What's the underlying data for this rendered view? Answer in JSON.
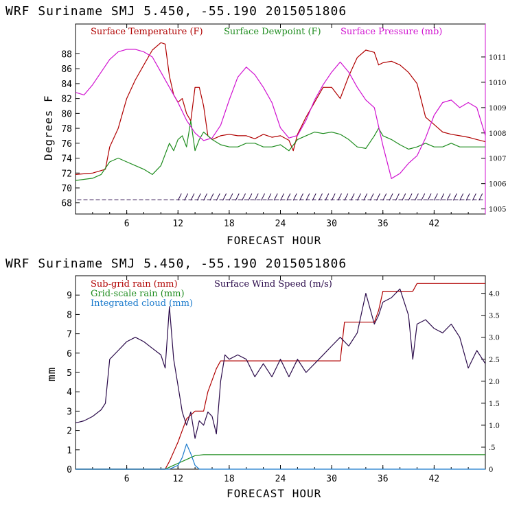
{
  "chart_data": [
    {
      "type": "line",
      "header": "WRF   Suriname SMJ   5.450, -55.190  2015051806",
      "xlabel": "FORECAST HOUR",
      "ylabel": "Degrees F",
      "xlim": [
        0,
        48
      ],
      "ylim": [
        66.5,
        92
      ],
      "y2lim": [
        1004.8,
        1012.3
      ],
      "x_ticks": [
        "6",
        "12",
        "18",
        "24",
        "30",
        "36",
        "42"
      ],
      "y_ticks": [
        "68",
        "70",
        "72",
        "74",
        "76",
        "78",
        "80",
        "82",
        "84",
        "86",
        "88"
      ],
      "y2_ticks": [
        "1005",
        "1006",
        "1007",
        "1008",
        "1009",
        "1010",
        "1011"
      ],
      "legend": [
        "Surface Temperature (F)",
        "Surface Dewpoint (F)",
        "Surface Pressure (mb)"
      ],
      "colors": {
        "temperature": "#b00000",
        "dewpoint": "#1e8c1e",
        "pressure": "#d010d0",
        "barbs": "#2a0a4a"
      },
      "series": [
        {
          "name": "Surface Temperature (F)",
          "axis": "left",
          "x": [
            0,
            2,
            3.5,
            4,
            5,
            6,
            7,
            8,
            9,
            10,
            10.5,
            11,
            11.5,
            12,
            12.5,
            13,
            13.5,
            14,
            14.5,
            15,
            15.5,
            16,
            17,
            18,
            19,
            20,
            21,
            22,
            23,
            24,
            25,
            25.5,
            26,
            27,
            28,
            29,
            30,
            31,
            32,
            33,
            34,
            35,
            35.5,
            36,
            37,
            38,
            39,
            40,
            41,
            42,
            43,
            44,
            45,
            46,
            47,
            48
          ],
          "y": [
            71.8,
            72,
            72.5,
            75.5,
            78,
            82,
            84.5,
            86.5,
            88.5,
            89.5,
            89.3,
            85,
            82.5,
            81.5,
            82,
            80,
            79,
            83.5,
            83.5,
            81,
            77,
            76.5,
            77,
            77.2,
            77,
            77,
            76.6,
            77.2,
            76.8,
            77,
            76.4,
            75,
            77.2,
            79.5,
            81.5,
            83.5,
            83.5,
            82,
            85,
            87.5,
            88.5,
            88.2,
            86.5,
            86.8,
            87,
            86.5,
            85.5,
            84,
            79.5,
            78.5,
            77.5,
            77.2,
            77,
            76.8,
            76.5,
            76.2
          ]
        },
        {
          "name": "Surface Dewpoint (F)",
          "axis": "left",
          "x": [
            0,
            2,
            3,
            4,
            5,
            6,
            7,
            8,
            9,
            10,
            11,
            11.5,
            12,
            12.5,
            13,
            13.5,
            14,
            14.5,
            15,
            15.5,
            16,
            17,
            18,
            19,
            20,
            21,
            22,
            23,
            24,
            25,
            26,
            27,
            28,
            29,
            30,
            31,
            32,
            33,
            34,
            35,
            35.5,
            36,
            37,
            38,
            39,
            40,
            41,
            42,
            43,
            44,
            45,
            46,
            47,
            48
          ],
          "y": [
            71,
            71.3,
            71.8,
            73.5,
            74,
            73.5,
            73,
            72.5,
            71.8,
            73,
            76,
            75,
            76.5,
            77,
            75.5,
            79,
            75,
            76.5,
            77.5,
            77,
            76.5,
            75.8,
            75.5,
            75.5,
            76,
            76,
            75.5,
            75.5,
            75.8,
            75,
            76.5,
            77,
            77.5,
            77.3,
            77.5,
            77.2,
            76.5,
            75.5,
            75.3,
            77,
            78,
            77,
            76.5,
            75.8,
            75.2,
            75.5,
            76,
            75.5,
            75.5,
            76,
            75.5,
            75.5,
            75.5,
            75.5
          ]
        },
        {
          "name": "Surface Pressure (mb)",
          "axis": "right",
          "x": [
            0,
            1,
            2,
            3,
            4,
            5,
            6,
            7,
            8,
            9,
            10,
            11,
            12,
            13,
            14,
            15,
            16,
            17,
            18,
            19,
            20,
            21,
            22,
            23,
            24,
            25,
            26,
            27,
            28,
            29,
            30,
            31,
            32,
            33,
            34,
            35,
            36,
            37,
            38,
            39,
            40,
            41,
            42,
            43,
            44,
            45,
            46,
            47,
            48
          ],
          "y": [
            1009.6,
            1009.5,
            1009.9,
            1010.4,
            1010.9,
            1011.2,
            1011.3,
            1011.3,
            1011.2,
            1011.0,
            1010.4,
            1009.8,
            1009.2,
            1008.5,
            1008.0,
            1007.7,
            1007.8,
            1008.3,
            1009.3,
            1010.2,
            1010.6,
            1010.3,
            1009.8,
            1009.2,
            1008.2,
            1007.8,
            1007.9,
            1008.5,
            1009.3,
            1009.9,
            1010.4,
            1010.8,
            1010.4,
            1009.8,
            1009.3,
            1009.0,
            1007.5,
            1006.2,
            1006.4,
            1006.8,
            1007.1,
            1007.8,
            1008.7,
            1009.2,
            1009.3,
            1009.0,
            1009.2,
            1009.0,
            1007.9
          ]
        }
      ]
    },
    {
      "type": "line",
      "header": "WRF   Suriname SMJ   5.450, -55.190  2015051806",
      "xlabel": "FORECAST HOUR",
      "ylabel": "mm",
      "xlim": [
        0,
        48
      ],
      "ylim": [
        0,
        10
      ],
      "y2lim": [
        0,
        4.4
      ],
      "x_ticks": [
        "6",
        "12",
        "18",
        "24",
        "30",
        "36",
        "42"
      ],
      "y_ticks": [
        "0",
        "1",
        "2",
        "3",
        "4",
        "5",
        "6",
        "7",
        "8",
        "9"
      ],
      "y2_ticks": [
        "0",
        ".5",
        "1.0",
        "1.5",
        "2.0",
        "2.5",
        "3.0",
        "3.5",
        "4.0"
      ],
      "legend": [
        "Sub-grid rain (mm)",
        "Grid-scale rain (mm)",
        "Integrated cloud (mm)",
        "Surface Wind Speed (m/s)"
      ],
      "colors": {
        "subgrid": "#b00000",
        "gridscale": "#1e8c1e",
        "cloud": "#1a7acc",
        "wind": "#2a0a4a"
      },
      "series": [
        {
          "name": "Sub-grid rain (mm)",
          "axis": "left",
          "x": [
            0,
            10.5,
            11,
            12,
            13,
            14,
            14.5,
            15,
            15.5,
            16,
            16.5,
            17,
            31,
            31.5,
            35,
            35.5,
            36,
            39.5,
            40,
            48
          ],
          "y": [
            0,
            0,
            0.4,
            1.4,
            2.6,
            3,
            3,
            3,
            4,
            4.6,
            5.2,
            5.6,
            5.6,
            7.6,
            7.6,
            8.2,
            9.2,
            9.2,
            9.6,
            9.6
          ]
        },
        {
          "name": "Grid-scale rain (mm)",
          "axis": "left",
          "x": [
            0,
            10.5,
            11,
            12,
            13,
            14,
            15,
            48
          ],
          "y": [
            0,
            0,
            0.1,
            0.3,
            0.5,
            0.7,
            0.75,
            0.75
          ]
        },
        {
          "name": "Integrated cloud (mm)",
          "axis": "left",
          "x": [
            0,
            11,
            12,
            12.5,
            13,
            13.5,
            14,
            14.5,
            15,
            48
          ],
          "y": [
            0,
            0,
            0.2,
            0.6,
            1.3,
            0.8,
            0.2,
            0,
            0,
            0
          ]
        },
        {
          "name": "Surface Wind Speed (m/s)",
          "axis": "right",
          "x": [
            0,
            1,
            2,
            3,
            3.5,
            4,
            5,
            6,
            7,
            8,
            9,
            10,
            10.5,
            11,
            11.5,
            12,
            12.5,
            13,
            13.5,
            14,
            14.5,
            15,
            15.5,
            16,
            16.5,
            17,
            17.5,
            18,
            19,
            20,
            21,
            22,
            23,
            24,
            25,
            26,
            27,
            28,
            29,
            30,
            31,
            32,
            33,
            34,
            35,
            35.5,
            36,
            37,
            38,
            39,
            39.5,
            40,
            41,
            42,
            43,
            44,
            45,
            46,
            47,
            48
          ],
          "y": [
            1.05,
            1.1,
            1.2,
            1.35,
            1.5,
            2.5,
            2.7,
            2.9,
            3.0,
            2.9,
            2.75,
            2.6,
            2.3,
            3.7,
            2.5,
            1.9,
            1.3,
            1.0,
            1.3,
            0.7,
            1.1,
            1.0,
            1.3,
            1.2,
            0.8,
            2.0,
            2.6,
            2.5,
            2.6,
            2.5,
            2.1,
            2.4,
            2.1,
            2.5,
            2.1,
            2.5,
            2.2,
            2.4,
            2.6,
            2.8,
            3.0,
            2.8,
            3.1,
            4.0,
            3.3,
            3.5,
            3.8,
            3.9,
            4.1,
            3.5,
            2.5,
            3.3,
            3.4,
            3.2,
            3.1,
            3.3,
            3.0,
            2.3,
            2.7,
            2.4
          ]
        }
      ]
    }
  ]
}
